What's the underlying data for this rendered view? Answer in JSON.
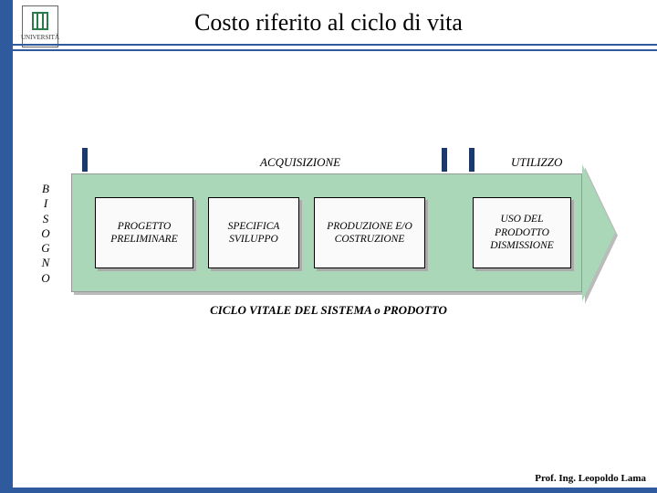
{
  "colors": {
    "border": "#2f5a9e",
    "hr": "#2f5a9e",
    "arrow_fill": "#a9d7b8",
    "tick": "#1a3a6e",
    "phase_fill": "#fafafa",
    "arrow_head": "#a9d7b8"
  },
  "title": "Costo riferito al ciclo di vita",
  "logo_text": "UNIVERSITÀ",
  "labels": {
    "acquisizione": "ACQUISIZIONE",
    "utilizzo": "UTILIZZO",
    "bisogno_letters": [
      "B",
      "I",
      "S",
      "O",
      "G",
      "N",
      "O"
    ],
    "bottom_caption": "CICLO VITALE DEL SISTEMA o PRODOTTO"
  },
  "phases": {
    "p1": "PROGETTO PRELIMINARE",
    "p2": "SPECIFICA SVILUPPO",
    "p3": "PRODUZIONE E/O COSTRUZIONE",
    "p4": "USO DEL PRODOTTO DISMISSIONE"
  },
  "footer": "Prof. Ing. Leopoldo Lama"
}
